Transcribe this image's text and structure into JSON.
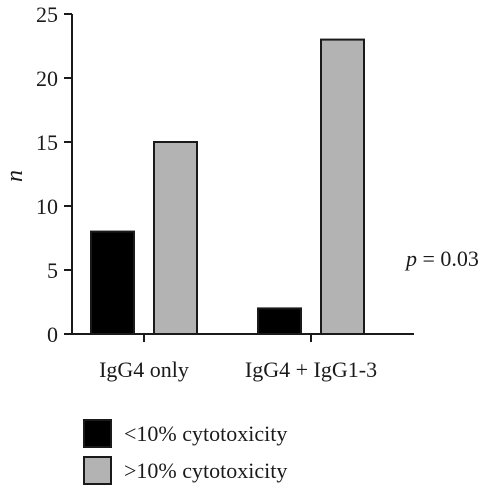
{
  "chart_data": {
    "type": "bar",
    "categories": [
      "IgG4 only",
      "IgG4 + IgG1-3"
    ],
    "series": [
      {
        "name": "<10% cytotoxicity",
        "values": [
          8,
          2
        ],
        "color": "#000000"
      },
      {
        "name": ">10% cytotoxicity",
        "values": [
          15,
          23
        ],
        "color": "#b3b3b3"
      }
    ],
    "ylabel": "n",
    "ylim": [
      0,
      25
    ],
    "yticks": [
      0,
      5,
      10,
      15,
      20,
      25
    ],
    "grid": false,
    "legend_position": "bottom-left",
    "annotation": {
      "symbol": "p",
      "text": " = 0.03"
    }
  }
}
